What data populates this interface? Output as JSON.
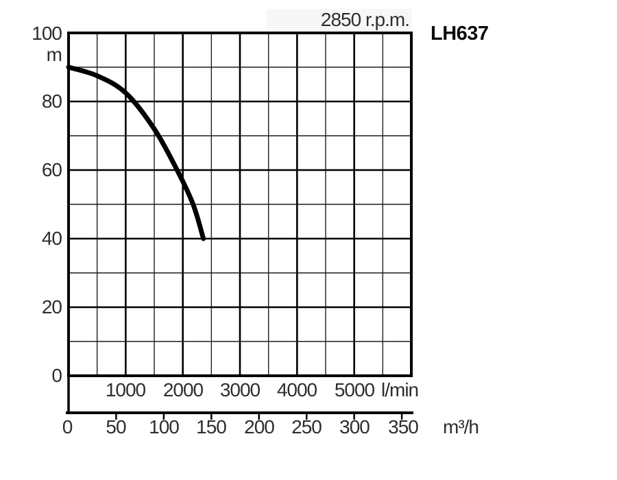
{
  "chart_data": {
    "type": "line",
    "title": "2850 r.p.m.",
    "model": "LH637",
    "grid": true,
    "legend": false,
    "y_axis": {
      "unit": "m",
      "ticks": [
        100,
        80,
        60,
        40,
        20,
        0
      ],
      "min": 0,
      "max": 100,
      "minor_step": 10,
      "major_step": 20
    },
    "x_axis_primary": {
      "unit": "l/min",
      "ticks": [
        1000,
        2000,
        3000,
        4000,
        5000
      ],
      "min": 0,
      "max": 6000,
      "minor_step": 500,
      "major_step": 1000
    },
    "x_axis_secondary": {
      "unit": "m³/h",
      "ticks": [
        0,
        50,
        100,
        150,
        200,
        250,
        300,
        350
      ],
      "min": 0,
      "max": 360,
      "tick_step": 50
    },
    "series": [
      {
        "name": "head-flow curve",
        "color": "#000000",
        "points": [
          {
            "flow_lmin": 0,
            "head_m": 90
          },
          {
            "flow_lmin": 500,
            "head_m": 87.5
          },
          {
            "flow_lmin": 1000,
            "head_m": 82.5
          },
          {
            "flow_lmin": 1500,
            "head_m": 72
          },
          {
            "flow_lmin": 1900,
            "head_m": 60
          },
          {
            "flow_lmin": 2180,
            "head_m": 50
          },
          {
            "flow_lmin": 2360,
            "head_m": 40
          }
        ]
      }
    ]
  }
}
